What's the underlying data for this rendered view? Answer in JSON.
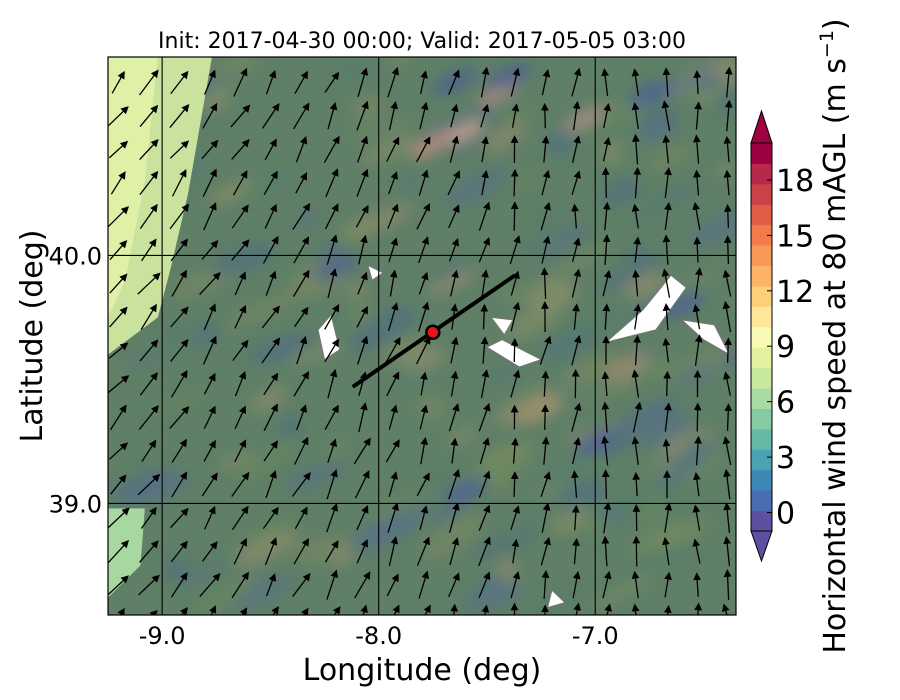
{
  "chart_data": {
    "type": "heatmap",
    "title": "Init: 2017-04-30 00:00; Valid: 2017-05-05 03:00",
    "xlabel": "Longitude (deg)",
    "ylabel": "Latitude (deg)",
    "xlim": [
      -9.25,
      -6.35
    ],
    "ylim": [
      38.55,
      40.8
    ],
    "x_ticks": [
      -9.0,
      -8.0,
      -7.0
    ],
    "x_tick_labels": [
      "-9.0",
      "-8.0",
      "-7.0"
    ],
    "y_ticks": [
      39.0,
      40.0
    ],
    "y_tick_labels": [
      "39.0",
      "40.0"
    ],
    "colorbar": {
      "label": "Horizontal wind speed at 80 mAGL (m s",
      "label_superscript": "−1",
      "label_close": ")",
      "min": -1,
      "max": 20,
      "step": 1,
      "extend": "both",
      "ticks": [
        0,
        3,
        6,
        9,
        12,
        15,
        18
      ],
      "tick_labels": [
        "0",
        "3",
        "6",
        "9",
        "12",
        "15",
        "18"
      ],
      "colors": [
        "#5e4fa2",
        "#4a6cb0",
        "#3e88b8",
        "#4aa3b2",
        "#66b8a6",
        "#86cba4",
        "#a9dca3",
        "#c8e89e",
        "#e4f29f",
        "#f8f9b4",
        "#fee798",
        "#fdd07c",
        "#fdb365",
        "#f89856",
        "#f27a4c",
        "#e35c48",
        "#cc4248",
        "#b8284b",
        "#9e0142"
      ]
    },
    "cross_section_line": {
      "start": [
        -8.12,
        39.47
      ],
      "end": [
        -7.37,
        39.92
      ]
    },
    "marker": {
      "lon": -7.75,
      "lat": 39.69,
      "color": "#e8141b"
    },
    "grid": true,
    "wind_field": {
      "dominant_direction": "northward (north-easterly tilt in the west)"
    }
  }
}
